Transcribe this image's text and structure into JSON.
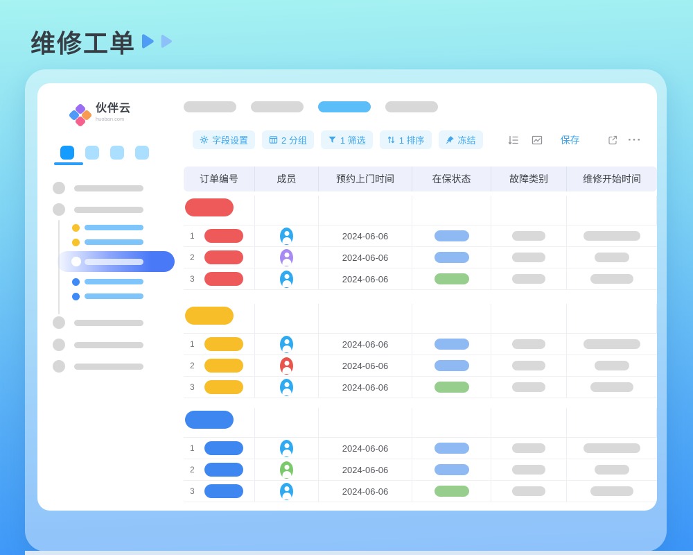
{
  "page": {
    "title": "维修工单"
  },
  "logo": {
    "name": "伙伴云",
    "domain": "huoban.com",
    "diamond_colors": {
      "top": "#9B6DF3",
      "left": "#4E9AF6",
      "right": "#F89B52",
      "bottom": "#F5608C"
    }
  },
  "title_accent_colors": {
    "play1": "#4F9CF4",
    "play2": "#8CC0F8"
  },
  "sidebar": {
    "tab_squares": [
      {
        "active": true
      },
      {
        "active": false
      },
      {
        "active": false
      },
      {
        "active": false
      }
    ],
    "items": [
      {
        "type": "gray"
      },
      {
        "type": "gray"
      },
      {
        "type": "sub",
        "dot": "#F8C22C"
      },
      {
        "type": "sub",
        "dot": "#F8C22C"
      },
      {
        "type": "selected"
      },
      {
        "type": "sub",
        "dot": "#3E8BF7"
      },
      {
        "type": "sub",
        "dot": "#3E8BF7"
      },
      {
        "type": "gray"
      },
      {
        "type": "gray"
      },
      {
        "type": "gray"
      }
    ]
  },
  "view_tabs": {
    "pills": [
      {
        "active": false
      },
      {
        "active": false
      },
      {
        "active": true
      },
      {
        "active": false
      }
    ]
  },
  "toolbar": {
    "buttons": [
      {
        "id": "field-settings",
        "icon": "gear",
        "label": "字段设置"
      },
      {
        "id": "group",
        "icon": "board",
        "label": "2 分组"
      },
      {
        "id": "filter",
        "icon": "funnel",
        "label": "1 筛选"
      },
      {
        "id": "sort",
        "icon": "sort",
        "label": "1 排序"
      },
      {
        "id": "freeze",
        "icon": "pin",
        "label": "冻结"
      }
    ],
    "icon_buttons": [
      {
        "id": "row-height",
        "icon": "rowheight"
      },
      {
        "id": "chart",
        "icon": "chart"
      }
    ],
    "save_label": "保存",
    "more_label": "···"
  },
  "colors": {
    "avatar": {
      "blue": "#2FAAF1",
      "purple": "#A78BF2",
      "red": "#E9544D",
      "green": "#7CC96B"
    },
    "status": {
      "blue": "#8FB9F3",
      "green": "#97CE8E"
    },
    "placeholder": "#D9D9D9"
  },
  "table": {
    "columns": [
      "订单编号",
      "成员",
      "预约上门时间",
      "在保状态",
      "故障类别",
      "维修开始时间"
    ],
    "groups": [
      {
        "name": "red-group",
        "color": "#EE5A5A",
        "rows": [
          {
            "num": "1",
            "avatar": "blue",
            "date": "2024-06-06",
            "status": "blue",
            "fault_w": 48,
            "time_w": 82
          },
          {
            "num": "2",
            "avatar": "purple",
            "date": "2024-06-06",
            "status": "blue",
            "fault_w": 48,
            "time_w": 50
          },
          {
            "num": "3",
            "avatar": "blue",
            "date": "2024-06-06",
            "status": "green",
            "fault_w": 48,
            "time_w": 62
          }
        ]
      },
      {
        "name": "yellow-group",
        "color": "#F8BE2A",
        "rows": [
          {
            "num": "1",
            "avatar": "blue",
            "date": "2024-06-06",
            "status": "blue",
            "fault_w": 48,
            "time_w": 82
          },
          {
            "num": "2",
            "avatar": "red",
            "date": "2024-06-06",
            "status": "blue",
            "fault_w": 48,
            "time_w": 50
          },
          {
            "num": "3",
            "avatar": "blue",
            "date": "2024-06-06",
            "status": "green",
            "fault_w": 48,
            "time_w": 62
          }
        ]
      },
      {
        "name": "blue-group",
        "color": "#3E86F0",
        "rows": [
          {
            "num": "1",
            "avatar": "blue",
            "date": "2024-06-06",
            "status": "blue",
            "fault_w": 48,
            "time_w": 82
          },
          {
            "num": "2",
            "avatar": "green",
            "date": "2024-06-06",
            "status": "blue",
            "fault_w": 48,
            "time_w": 50
          },
          {
            "num": "3",
            "avatar": "blue",
            "date": "2024-06-06",
            "status": "green",
            "fault_w": 48,
            "time_w": 62
          }
        ]
      }
    ]
  }
}
